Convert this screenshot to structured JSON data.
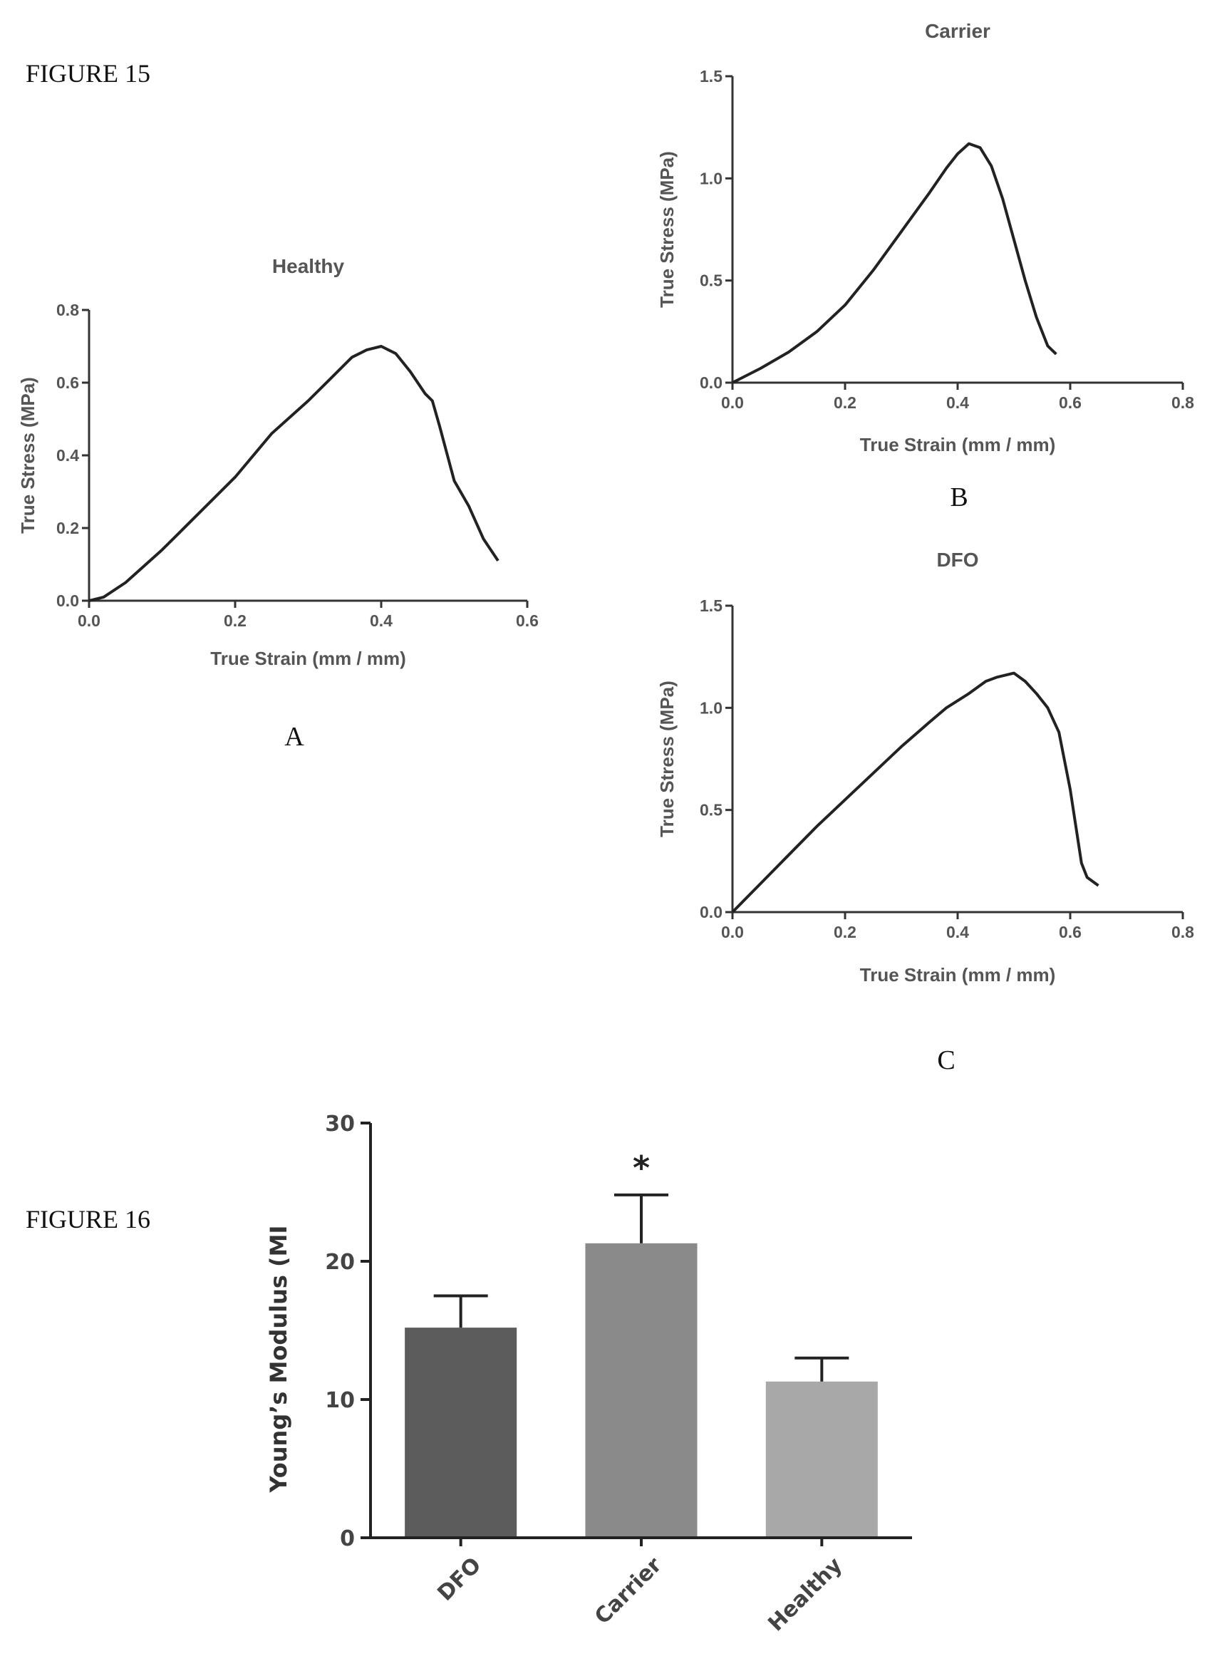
{
  "figure15": {
    "label": "FIGURE 15"
  },
  "figure16": {
    "label": "FIGURE 16"
  },
  "chart_data": [
    {
      "id": "A",
      "panel": "A",
      "type": "line",
      "title": "Healthy",
      "xlabel": "True Strain (mm / mm)",
      "ylabel": "True Stress (MPa)",
      "xlim": [
        0,
        0.6
      ],
      "ylim": [
        0,
        0.8
      ],
      "xticks": [
        0.0,
        0.2,
        0.4,
        0.6
      ],
      "yticks": [
        0.0,
        0.2,
        0.4,
        0.6,
        0.8
      ],
      "xtick_labels": [
        "0.0",
        "0.2",
        "0.4",
        "0.6"
      ],
      "ytick_labels": [
        "0.0",
        "0.2",
        "0.4",
        "0.6",
        "0.8"
      ],
      "x": [
        0,
        0.02,
        0.05,
        0.1,
        0.15,
        0.2,
        0.25,
        0.3,
        0.33,
        0.36,
        0.38,
        0.4,
        0.42,
        0.44,
        0.46,
        0.47,
        0.48,
        0.5,
        0.52,
        0.54,
        0.56
      ],
      "y": [
        0,
        0.01,
        0.05,
        0.14,
        0.24,
        0.34,
        0.46,
        0.55,
        0.61,
        0.67,
        0.69,
        0.7,
        0.68,
        0.63,
        0.57,
        0.55,
        0.48,
        0.33,
        0.26,
        0.17,
        0.11
      ]
    },
    {
      "id": "B",
      "panel": "B",
      "type": "line",
      "title": "Carrier",
      "xlabel": "True Strain (mm / mm)",
      "ylabel": "True Stress (MPa)",
      "xlim": [
        0,
        0.8
      ],
      "ylim": [
        0,
        1.5
      ],
      "xticks": [
        0.0,
        0.2,
        0.4,
        0.6,
        0.8
      ],
      "yticks": [
        0.0,
        0.5,
        1.0,
        1.5
      ],
      "xtick_labels": [
        "0.0",
        "0.2",
        "0.4",
        "0.6",
        "0.8"
      ],
      "ytick_labels": [
        "0.0",
        "0.5",
        "1.0",
        "1.5"
      ],
      "x": [
        0,
        0.05,
        0.1,
        0.15,
        0.2,
        0.25,
        0.3,
        0.35,
        0.38,
        0.4,
        0.42,
        0.44,
        0.46,
        0.48,
        0.5,
        0.52,
        0.54,
        0.56,
        0.575
      ],
      "y": [
        0,
        0.07,
        0.15,
        0.25,
        0.38,
        0.55,
        0.74,
        0.93,
        1.05,
        1.12,
        1.17,
        1.15,
        1.06,
        0.9,
        0.7,
        0.5,
        0.32,
        0.18,
        0.14
      ]
    },
    {
      "id": "C",
      "panel": "C",
      "type": "line",
      "title": "DFO",
      "xlabel": "True Strain (mm / mm)",
      "ylabel": "True Stress (MPa)",
      "xlim": [
        0,
        0.8
      ],
      "ylim": [
        0,
        1.5
      ],
      "xticks": [
        0.0,
        0.2,
        0.4,
        0.6,
        0.8
      ],
      "yticks": [
        0.0,
        0.5,
        1.0,
        1.5
      ],
      "xtick_labels": [
        "0.0",
        "0.2",
        "0.4",
        "0.6",
        "0.8"
      ],
      "ytick_labels": [
        "0.0",
        "0.5",
        "1.0",
        "1.5"
      ],
      "x": [
        0,
        0.05,
        0.1,
        0.15,
        0.2,
        0.25,
        0.3,
        0.35,
        0.38,
        0.42,
        0.45,
        0.47,
        0.5,
        0.52,
        0.54,
        0.56,
        0.58,
        0.6,
        0.61,
        0.62,
        0.63,
        0.65
      ],
      "y": [
        0,
        0.14,
        0.28,
        0.42,
        0.55,
        0.68,
        0.81,
        0.93,
        1.0,
        1.07,
        1.13,
        1.15,
        1.17,
        1.13,
        1.07,
        1.0,
        0.88,
        0.6,
        0.42,
        0.24,
        0.17,
        0.13
      ]
    },
    {
      "id": "F16",
      "type": "bar",
      "title": "",
      "xlabel": "",
      "ylabel": "Young’s Modulus (MI",
      "ylim": [
        0,
        30
      ],
      "yticks": [
        0,
        10,
        20,
        30
      ],
      "ytick_labels": [
        "0",
        "10",
        "20",
        "30"
      ],
      "categories": [
        "DFO",
        "Carrier",
        "Healthy"
      ],
      "values": [
        15.2,
        21.3,
        11.3
      ],
      "errors": [
        2.3,
        3.5,
        1.7
      ],
      "bar_colors": [
        "#5c5c5c",
        "#8a8a8a",
        "#a8a8a8"
      ],
      "annotations": [
        {
          "category": "Carrier",
          "text": "*"
        }
      ]
    }
  ]
}
